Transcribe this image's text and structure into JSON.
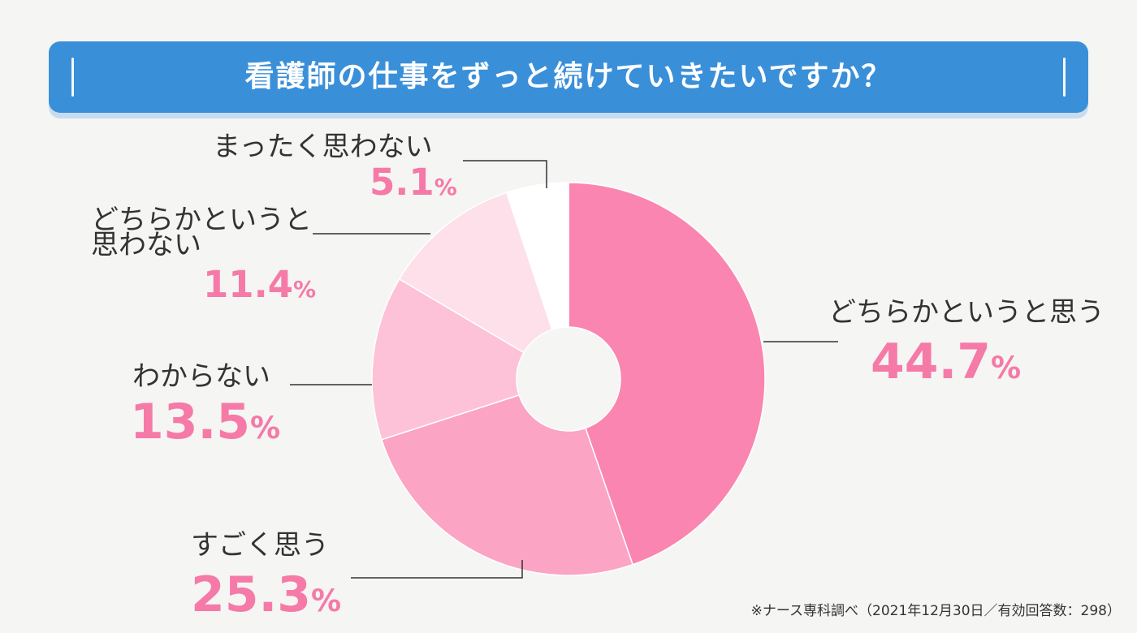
{
  "title": "看護師の仕事をずっと続けていきたいですか？",
  "footnote": "※ナース専科調べ（2021年12月30日／有効回答数：298）",
  "chart_data": {
    "type": "pie",
    "donut": true,
    "title": "看護師の仕事をずっと続けていきたいですか？",
    "slices": [
      {
        "label": "どちらかというと思う",
        "value": 44.7,
        "display": "44.7",
        "color": "#f985b0"
      },
      {
        "label": "すごく思う",
        "value": 25.3,
        "display": "25.3",
        "color": "#fba4c4"
      },
      {
        "label": "わからない",
        "value": 13.5,
        "display": "13.5",
        "color": "#fdc2d7"
      },
      {
        "label": "どちらかというと\n思わない",
        "value": 11.4,
        "display": "11.4",
        "color": "#fde0ea"
      },
      {
        "label": "まったく思わない",
        "value": 5.1,
        "display": "5.1",
        "color": "#ffffff"
      }
    ],
    "unit": "%"
  }
}
